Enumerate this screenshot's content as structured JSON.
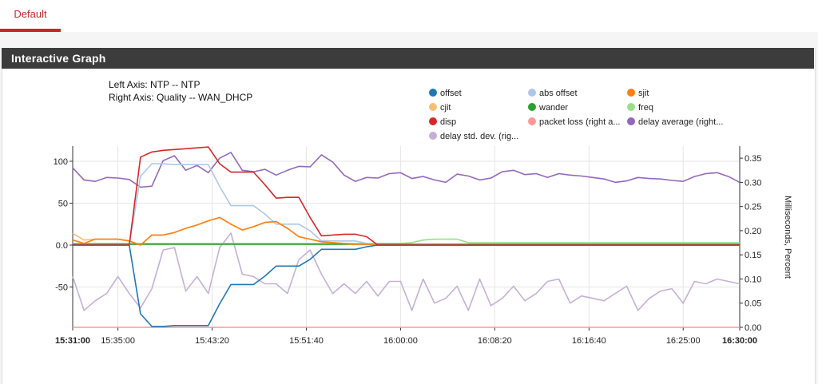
{
  "tabs": [
    {
      "label": "Default",
      "active": true
    }
  ],
  "panel": {
    "title": "Interactive Graph"
  },
  "axis_info": {
    "left": "Left Axis: NTP -- NTP",
    "right": "Right Axis: Quality -- WAN_DHCP"
  },
  "chart_data": {
    "type": "line",
    "left_axis": {
      "min": -100,
      "max": 120,
      "ticks": [
        {
          "v": 100,
          "label": "100"
        },
        {
          "v": 50,
          "label": "50"
        },
        {
          "v": 0,
          "label": "0.0"
        },
        {
          "v": -50,
          "label": "-50"
        }
      ]
    },
    "right_axis": {
      "label": "Milliseconds, Percent",
      "min": 0,
      "max": 0.375,
      "ticks": [
        0.0,
        0.05,
        0.1,
        0.15,
        0.2,
        0.25,
        0.3,
        0.35
      ],
      "tick_labels": [
        "0.00",
        "0.05",
        "0.10",
        "0.15",
        "0.20",
        "0.25",
        "0.30",
        "0.35"
      ]
    },
    "x_axis": {
      "min_minutes": 0,
      "max_minutes": 59,
      "ticks": [
        {
          "m": 0,
          "label": "15:31:00",
          "bold": true
        },
        {
          "m": 4,
          "label": "15:35:00",
          "bold": false
        },
        {
          "m": 12.33,
          "label": "15:43:20",
          "bold": false
        },
        {
          "m": 20.67,
          "label": "15:51:40",
          "bold": false
        },
        {
          "m": 29,
          "label": "16:00:00",
          "bold": false
        },
        {
          "m": 37.33,
          "label": "16:08:20",
          "bold": false
        },
        {
          "m": 45.67,
          "label": "16:16:40",
          "bold": false
        },
        {
          "m": 54,
          "label": "16:25:00",
          "bold": false
        },
        {
          "m": 59,
          "label": "16:30:00",
          "bold": true
        }
      ]
    },
    "legend": [
      {
        "name": "offset",
        "color": "#1f77b4"
      },
      {
        "name": "abs offset",
        "color": "#aec7e8"
      },
      {
        "name": "sjit",
        "color": "#ff7f0e"
      },
      {
        "name": "cjit",
        "color": "#ffbb78"
      },
      {
        "name": "wander",
        "color": "#2ca02c"
      },
      {
        "name": "freq",
        "color": "#98df8a"
      },
      {
        "name": "disp",
        "color": "#d62728"
      },
      {
        "name": "packet loss (right a...",
        "color": "#ff9896"
      },
      {
        "name": "delay average (right...",
        "color": "#9467bd"
      },
      {
        "name": "delay std. dev. (rig...",
        "color": "#c5b0d5"
      }
    ],
    "series": [
      {
        "name": "offset",
        "axis": "left",
        "color": "#1f77b4",
        "x": [
          0,
          5,
          6,
          7,
          8,
          9,
          10,
          11,
          12,
          13,
          14,
          15,
          16,
          17,
          18,
          19,
          20,
          21,
          22,
          23,
          24,
          25,
          26,
          27,
          59
        ],
        "y": [
          0,
          0,
          -82,
          -97,
          -97,
          -96,
          -96,
          -96,
          -96,
          -70,
          -47,
          -47,
          -47,
          -37,
          -25,
          -25,
          -25,
          -17,
          -5,
          -5,
          -5,
          -5,
          -2,
          0,
          0
        ]
      },
      {
        "name": "abs offset",
        "axis": "left",
        "color": "#aec7e8",
        "x": [
          0,
          5,
          6,
          7,
          8,
          9,
          10,
          11,
          12,
          13,
          14,
          15,
          16,
          17,
          18,
          19,
          20,
          21,
          22,
          23,
          24,
          25,
          26,
          27,
          59
        ],
        "y": [
          0,
          0,
          82,
          97,
          97,
          96,
          96,
          96,
          96,
          70,
          47,
          47,
          47,
          37,
          25,
          25,
          25,
          17,
          5,
          5,
          5,
          5,
          2,
          0,
          0
        ]
      },
      {
        "name": "sjit",
        "axis": "left",
        "color": "#ff7f0e",
        "x": [
          0,
          1,
          2,
          3,
          4,
          5,
          6,
          7,
          8,
          9,
          10,
          11,
          12,
          13,
          14,
          15,
          16,
          17,
          18,
          19,
          20,
          21,
          22,
          23,
          24,
          25,
          26,
          27,
          59
        ],
        "y": [
          6,
          2,
          7,
          7,
          7,
          5,
          0,
          12,
          12,
          15,
          20,
          24,
          29,
          33,
          25,
          18,
          22,
          27,
          28,
          20,
          10,
          7,
          4,
          3,
          2,
          1,
          1,
          0,
          0
        ]
      },
      {
        "name": "cjit",
        "axis": "left",
        "color": "#ffbb78",
        "x": [
          0,
          1,
          2,
          3,
          4,
          5,
          6,
          7,
          8,
          9,
          10,
          11,
          12,
          13,
          14,
          15,
          16,
          17,
          18,
          19,
          20,
          21,
          22,
          23,
          24,
          25,
          26,
          27,
          59
        ],
        "y": [
          14,
          6,
          7,
          7,
          7,
          5,
          0,
          12,
          12,
          15,
          20,
          24,
          29,
          33,
          25,
          18,
          22,
          27,
          28,
          20,
          10,
          7,
          4,
          3,
          2,
          1,
          1,
          0,
          0
        ]
      },
      {
        "name": "wander",
        "axis": "left",
        "color": "#2ca02c",
        "x": [
          0,
          59
        ],
        "y": [
          1,
          1
        ]
      },
      {
        "name": "freq",
        "axis": "left",
        "color": "#98df8a",
        "x": [
          0,
          28,
          29,
          30,
          31,
          32,
          33,
          34,
          35,
          59
        ],
        "y": [
          2,
          2,
          2,
          3,
          6,
          7,
          7,
          7,
          3,
          3
        ]
      },
      {
        "name": "disp",
        "axis": "left",
        "color": "#d62728",
        "x": [
          0,
          5,
          6,
          7,
          8,
          9,
          10,
          11,
          12,
          13,
          14,
          15,
          16,
          17,
          18,
          19,
          20,
          21,
          22,
          23,
          24,
          25,
          26,
          27,
          59
        ],
        "y": [
          0,
          0,
          105,
          111,
          113,
          114,
          115,
          116,
          117,
          97,
          87,
          87,
          87,
          72,
          56,
          57,
          57,
          33,
          11,
          12,
          13,
          13,
          10,
          0,
          0
        ]
      },
      {
        "name": "packet loss (right a...",
        "axis": "right",
        "color": "#ff9896",
        "x": [
          0,
          59
        ],
        "y": [
          0,
          0
        ]
      },
      {
        "name": "delay average (right...",
        "axis": "right",
        "color": "#9467bd",
        "x": [
          0,
          1,
          2,
          3,
          4,
          5,
          6,
          7,
          8,
          9,
          10,
          11,
          12,
          13,
          14,
          15,
          16,
          17,
          18,
          19,
          20,
          21,
          22,
          23,
          24,
          25,
          26,
          27,
          28,
          29,
          30,
          31,
          32,
          33,
          34,
          35,
          36,
          37,
          38,
          39,
          40,
          41,
          42,
          43,
          44,
          45,
          46,
          47,
          48,
          49,
          50,
          51,
          52,
          53,
          54,
          55,
          56,
          57,
          58,
          59
        ],
        "y": [
          0.33,
          0.305,
          0.302,
          0.31,
          0.309,
          0.306,
          0.29,
          0.292,
          0.345,
          0.355,
          0.325,
          0.335,
          0.32,
          0.35,
          0.362,
          0.325,
          0.322,
          0.327,
          0.315,
          0.325,
          0.333,
          0.332,
          0.357,
          0.342,
          0.315,
          0.302,
          0.31,
          0.309,
          0.318,
          0.32,
          0.308,
          0.312,
          0.305,
          0.3,
          0.317,
          0.313,
          0.305,
          0.309,
          0.322,
          0.325,
          0.316,
          0.318,
          0.31,
          0.318,
          0.315,
          0.313,
          0.31,
          0.307,
          0.3,
          0.303,
          0.31,
          0.308,
          0.307,
          0.304,
          0.302,
          0.312,
          0.318,
          0.32,
          0.312,
          0.3
        ]
      },
      {
        "name": "delay std. dev. (rig...",
        "axis": "right",
        "color": "#c5b0d5",
        "x": [
          0,
          1,
          2,
          3,
          4,
          5,
          6,
          7,
          8,
          9,
          10,
          11,
          12,
          13,
          14,
          15,
          16,
          17,
          18,
          19,
          20,
          21,
          22,
          23,
          24,
          25,
          26,
          27,
          28,
          29,
          30,
          31,
          32,
          33,
          34,
          35,
          36,
          37,
          38,
          39,
          40,
          41,
          42,
          43,
          44,
          45,
          46,
          47,
          48,
          49,
          50,
          51,
          52,
          53,
          54,
          55,
          56,
          57,
          58,
          59
        ],
        "y": [
          0.105,
          0.035,
          0.055,
          0.07,
          0.105,
          0.07,
          0.04,
          0.08,
          0.16,
          0.165,
          0.075,
          0.105,
          0.07,
          0.165,
          0.195,
          0.11,
          0.105,
          0.09,
          0.09,
          0.07,
          0.14,
          0.16,
          0.11,
          0.07,
          0.09,
          0.07,
          0.095,
          0.065,
          0.095,
          0.095,
          0.035,
          0.1,
          0.05,
          0.06,
          0.085,
          0.035,
          0.1,
          0.045,
          0.06,
          0.085,
          0.055,
          0.07,
          0.095,
          0.1,
          0.05,
          0.065,
          0.06,
          0.055,
          0.07,
          0.085,
          0.035,
          0.06,
          0.075,
          0.08,
          0.05,
          0.095,
          0.09,
          0.1,
          0.095,
          0.09
        ]
      }
    ]
  }
}
